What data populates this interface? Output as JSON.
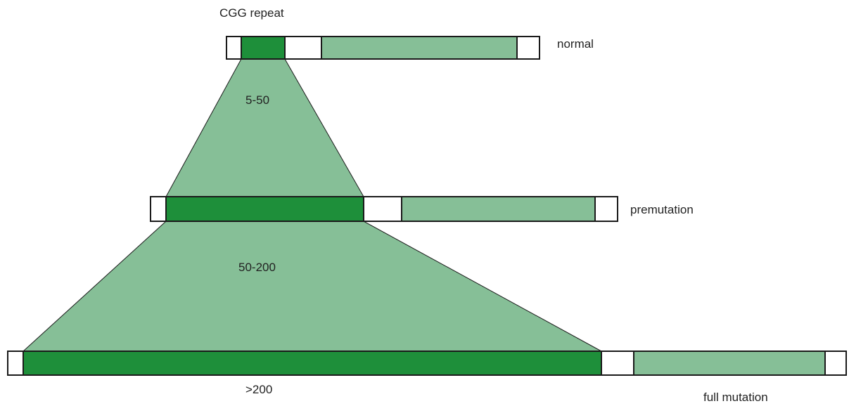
{
  "diagram": {
    "title": "CGG repeat",
    "alleles": [
      {
        "label": "normal"
      },
      {
        "label": "premutation"
      },
      {
        "label": "full mutation"
      }
    ],
    "ranges": [
      {
        "label": "5-50"
      },
      {
        "label": "50-200"
      },
      {
        "label": ">200"
      }
    ],
    "colors": {
      "repeat": "#1e8f3a",
      "gene": "#86bf97",
      "expansion": "#86bf97",
      "outline": "#1a1a1a"
    }
  }
}
